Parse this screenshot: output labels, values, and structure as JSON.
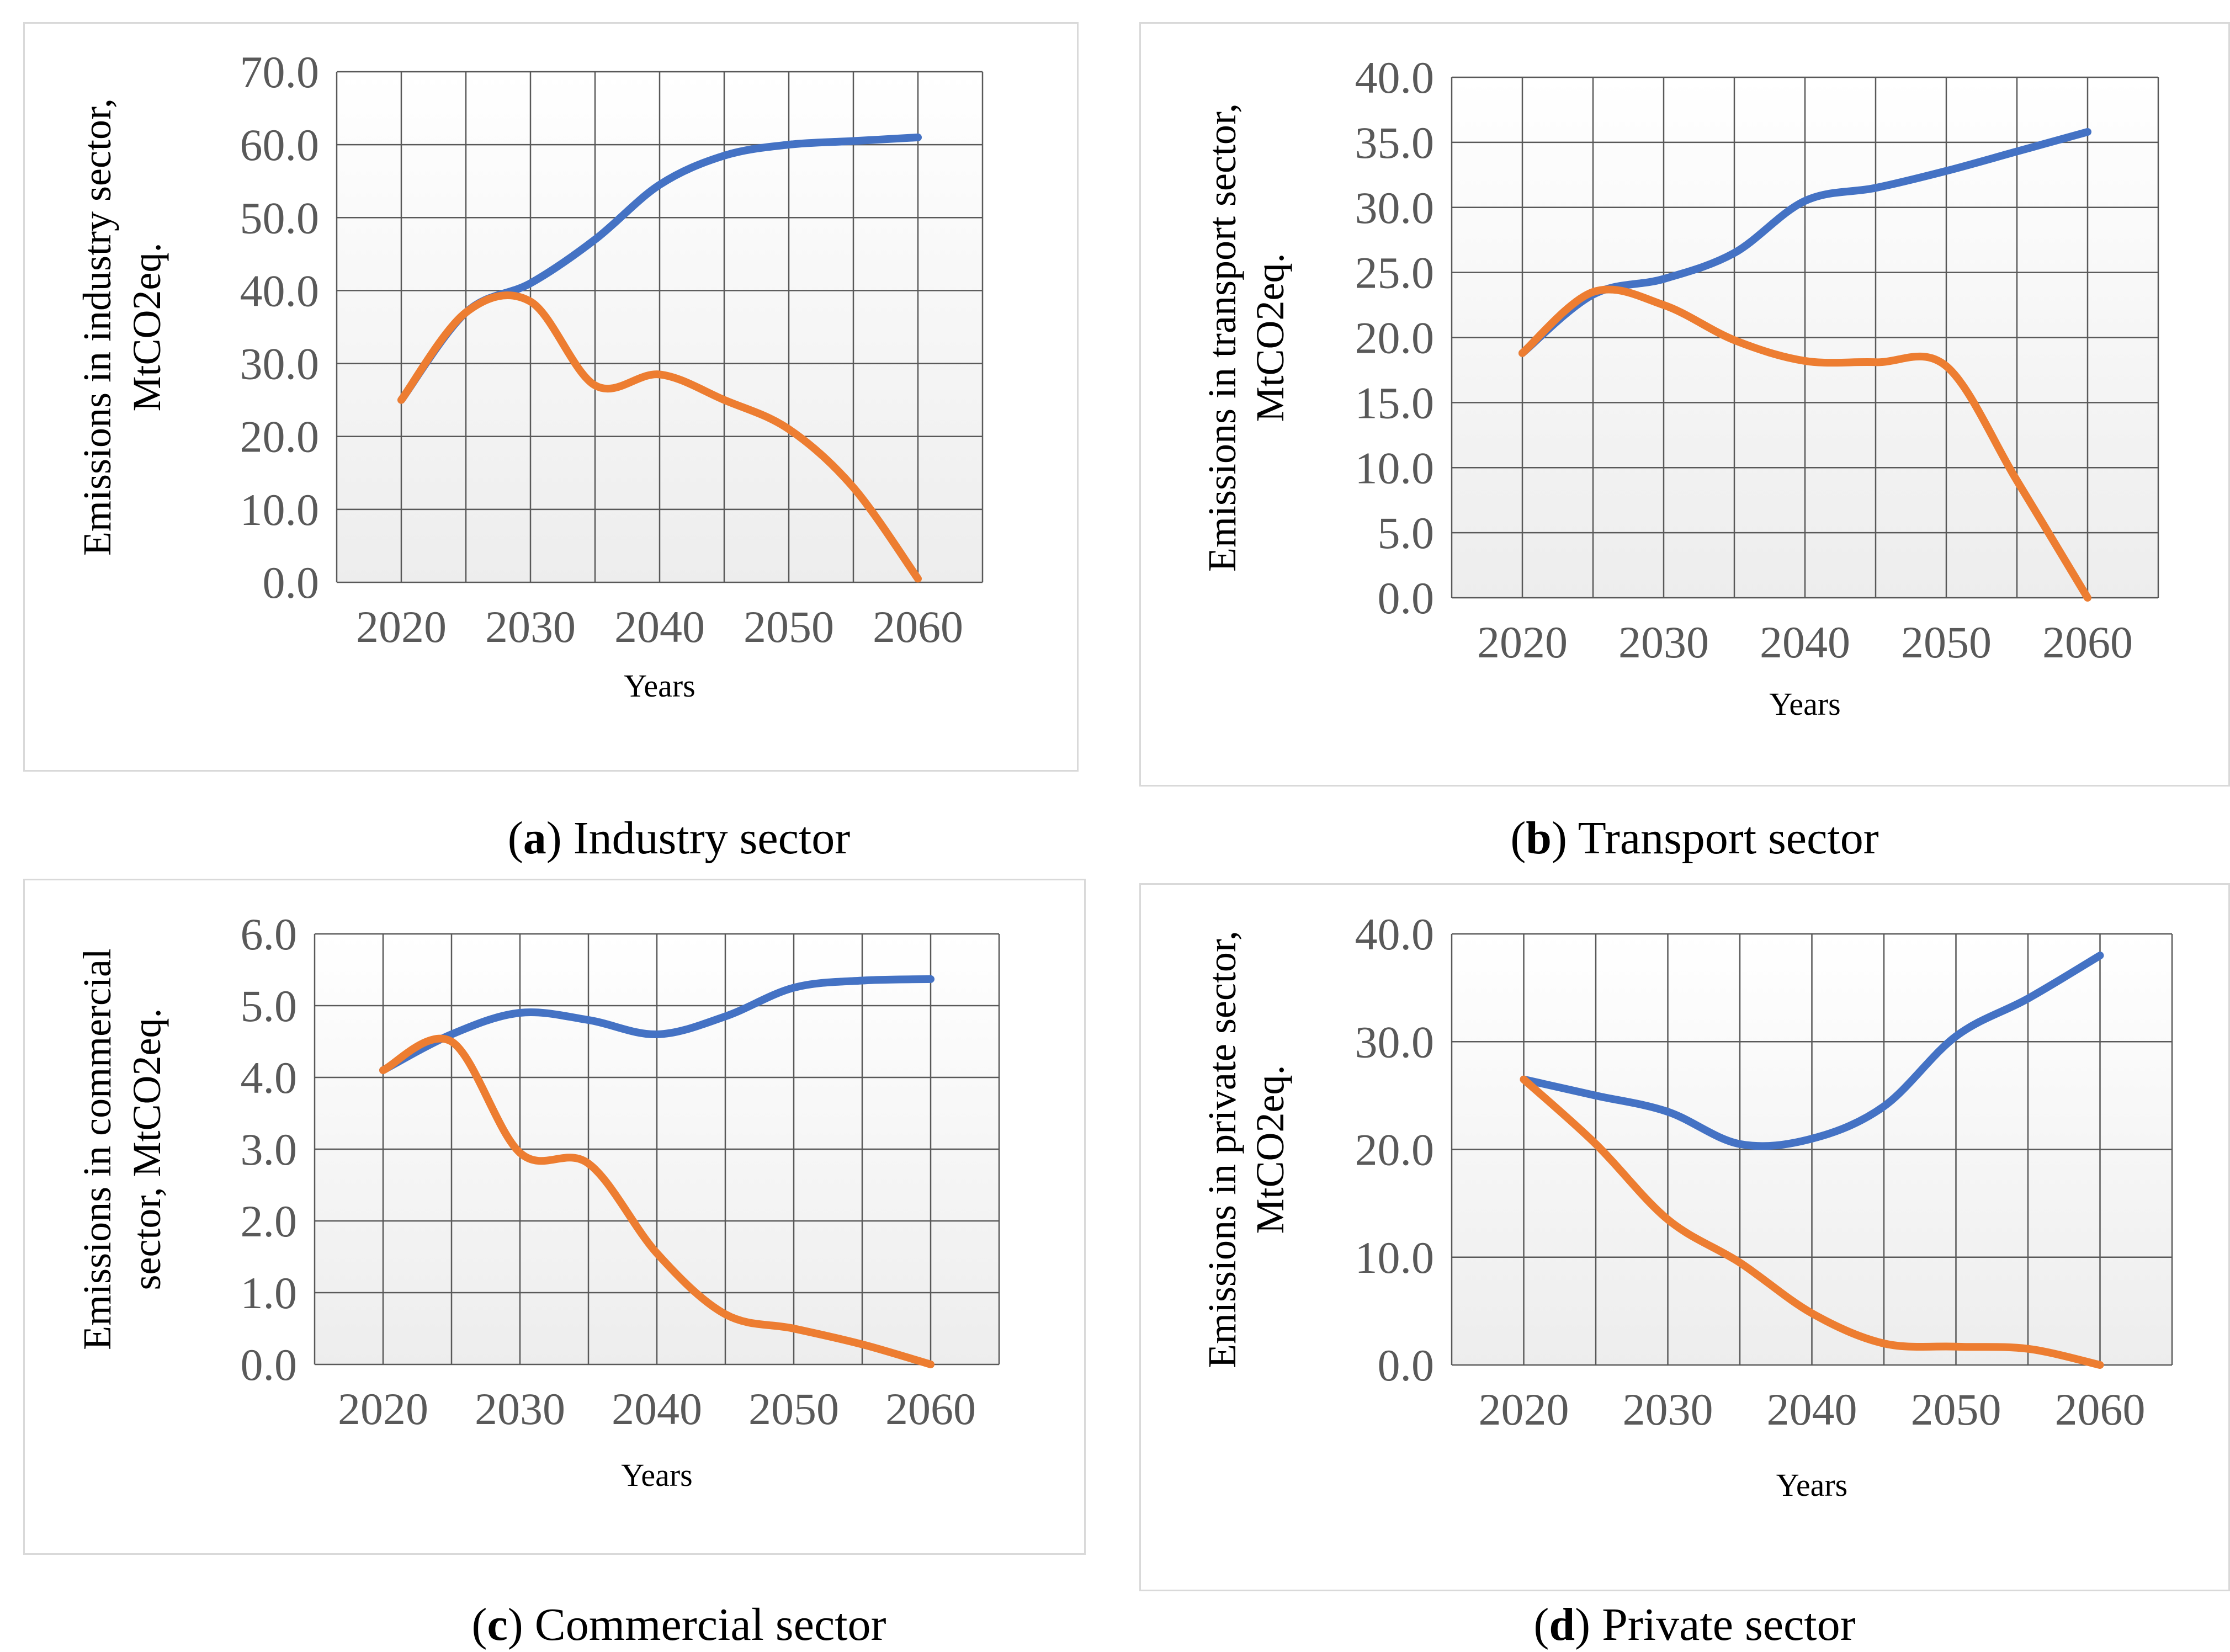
{
  "colors": {
    "series_blue": "#4472C4",
    "series_orange": "#ED7D31",
    "grid": "#595959",
    "frame": "#d9d9d9",
    "plot_bg_top": "#ffffff",
    "plot_bg_bottom": "#ededed"
  },
  "chart_data": [
    {
      "type": "line",
      "id": "a",
      "caption_letter": "a",
      "caption_text": "Industry sector",
      "xlabel": "Years",
      "ylabel_lines": [
        "Emissions in industry sector,",
        "MtCO2eq."
      ],
      "ylim": [
        0,
        70
      ],
      "ytick_labels": [
        "0.0",
        "10.0",
        "20.0",
        "30.0",
        "40.0",
        "50.0",
        "60.0",
        "70.0"
      ],
      "xtick_labels": [
        "2020",
        "2030",
        "2040",
        "2050",
        "2060"
      ],
      "x": [
        2020,
        2025,
        2030,
        2035,
        2040,
        2045,
        2050,
        2055,
        2060
      ],
      "series": [
        {
          "name": "blue",
          "color": "#4472C4",
          "values": [
            25,
            37,
            41,
            47,
            54.5,
            58.5,
            60,
            60.5,
            61
          ]
        },
        {
          "name": "orange",
          "color": "#ED7D31",
          "values": [
            25,
            37,
            38.5,
            27,
            28.5,
            25,
            21,
            13,
            0.5
          ]
        }
      ]
    },
    {
      "type": "line",
      "id": "b",
      "caption_letter": "b",
      "caption_text": "Transport sector",
      "xlabel": "Years",
      "ylabel_lines": [
        "Emissions in transport sector,",
        "MtCO2eq."
      ],
      "ylim": [
        0,
        40
      ],
      "ytick_labels": [
        "0.0",
        "5.0",
        "10.0",
        "15.0",
        "20.0",
        "25.0",
        "30.0",
        "35.0",
        "40.0"
      ],
      "xtick_labels": [
        "2020",
        "2030",
        "2040",
        "2050",
        "2060"
      ],
      "x": [
        2020,
        2025,
        2030,
        2035,
        2040,
        2045,
        2050,
        2055,
        2060
      ],
      "series": [
        {
          "name": "blue",
          "color": "#4472C4",
          "values": [
            18.8,
            23.3,
            24.5,
            26.5,
            30.5,
            31.5,
            32.8,
            34.3,
            35.8
          ]
        },
        {
          "name": "orange",
          "color": "#ED7D31",
          "values": [
            18.8,
            23.5,
            22.5,
            19.8,
            18.2,
            18.1,
            17.8,
            9,
            0
          ]
        }
      ]
    },
    {
      "type": "line",
      "id": "c",
      "caption_letter": "c",
      "caption_text": "Commercial sector",
      "xlabel": "Years",
      "ylabel_lines": [
        "Emissions in commercial",
        "sector, MtCO2eq."
      ],
      "ylim": [
        0,
        6
      ],
      "ytick_labels": [
        "0.0",
        "1.0",
        "2.0",
        "3.0",
        "4.0",
        "5.0",
        "6.0"
      ],
      "xtick_labels": [
        "2020",
        "2030",
        "2040",
        "2050",
        "2060"
      ],
      "x": [
        2020,
        2025,
        2030,
        2035,
        2040,
        2045,
        2050,
        2055,
        2060
      ],
      "series": [
        {
          "name": "blue",
          "color": "#4472C4",
          "values": [
            4.1,
            4.6,
            4.9,
            4.8,
            4.6,
            4.85,
            5.25,
            5.35,
            5.37
          ]
        },
        {
          "name": "orange",
          "color": "#ED7D31",
          "values": [
            4.1,
            4.5,
            2.95,
            2.8,
            1.55,
            0.7,
            0.5,
            0.28,
            0
          ]
        }
      ]
    },
    {
      "type": "line",
      "id": "d",
      "caption_letter": "d",
      "caption_text": "Private sector",
      "xlabel": "Years",
      "ylabel_lines": [
        "Emissions in private  sector,",
        "MtCO2eq."
      ],
      "ylim": [
        0,
        40
      ],
      "ytick_labels": [
        "0.0",
        "10.0",
        "20.0",
        "30.0",
        "40.0"
      ],
      "xtick_labels": [
        "2020",
        "2030",
        "2040",
        "2050",
        "2060"
      ],
      "x": [
        2020,
        2025,
        2030,
        2035,
        2040,
        2045,
        2050,
        2055,
        2060
      ],
      "series": [
        {
          "name": "blue",
          "color": "#4472C4",
          "values": [
            26.5,
            25,
            23.5,
            20.5,
            21,
            24,
            30.5,
            34,
            38
          ]
        },
        {
          "name": "orange",
          "color": "#ED7D31",
          "values": [
            26.5,
            20.5,
            13.5,
            9.5,
            4.8,
            2,
            1.7,
            1.5,
            0
          ]
        }
      ]
    }
  ]
}
